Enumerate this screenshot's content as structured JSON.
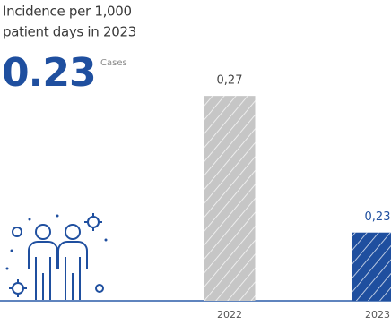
{
  "chart_data": {
    "type": "bar",
    "title_lines": [
      "Incidence per 1,000",
      "patient days in 2023"
    ],
    "highlight": {
      "value": "0.23",
      "unit": "Cases"
    },
    "categories": [
      "2022",
      "2023"
    ],
    "values": [
      0.27,
      0.23
    ],
    "value_labels": [
      "0,27",
      "0,23"
    ],
    "colors": [
      "#c6c6c6",
      "#1f4f9f"
    ],
    "label_colors": [
      "#444444",
      "#1f4f9f"
    ],
    "ylim": [
      0.21,
      0.28
    ]
  }
}
